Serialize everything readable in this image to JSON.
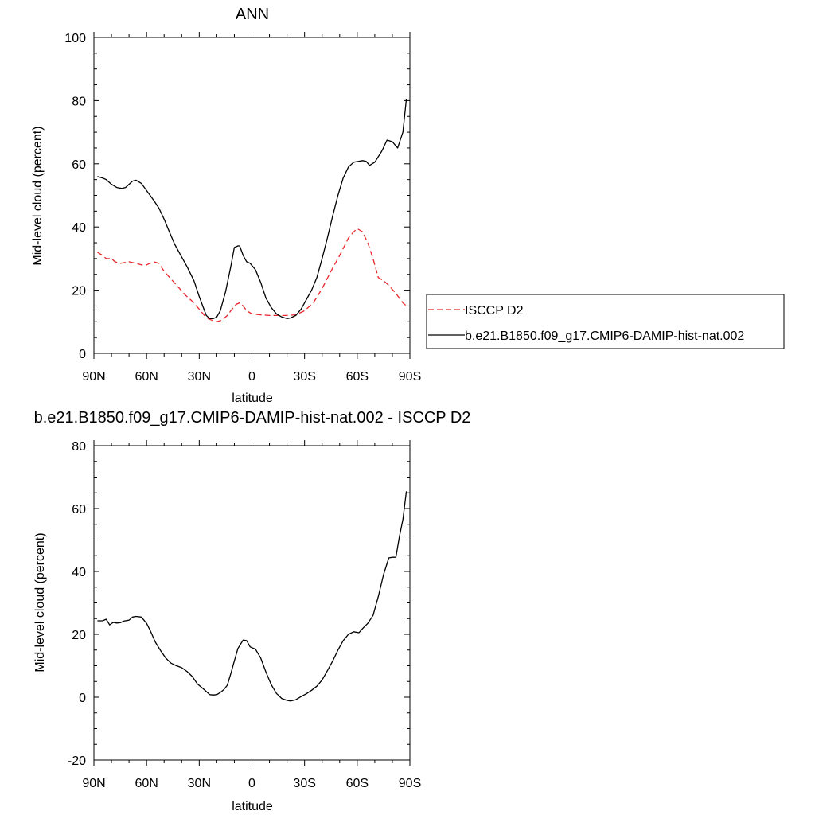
{
  "colors": {
    "model_line": "#000000",
    "obs_line": "#e8262b",
    "axis": "#000000"
  },
  "chart_data": [
    {
      "type": "line",
      "title": "ANN",
      "xlabel": "latitude",
      "ylabel": "Mid-level cloud (percent)",
      "xlim": [
        90,
        -90
      ],
      "ylim": [
        0,
        100
      ],
      "x_ticks": [
        {
          "value": 90,
          "label": "90N"
        },
        {
          "value": 60,
          "label": "60N"
        },
        {
          "value": 30,
          "label": "30N"
        },
        {
          "value": 0,
          "label": "0"
        },
        {
          "value": -30,
          "label": "30S"
        },
        {
          "value": -60,
          "label": "60S"
        },
        {
          "value": -90,
          "label": "90S"
        }
      ],
      "y_ticks": [
        0,
        20,
        40,
        60,
        80,
        100
      ],
      "y_minor_step": 5,
      "x_minor_step": 10,
      "legend_position": "right",
      "series": [
        {
          "name": "ISCCP D2",
          "style": "dashed",
          "color": "#e8262b",
          "x": [
            88,
            85,
            83,
            80,
            78,
            75,
            70,
            66,
            63,
            60,
            56,
            53,
            50,
            46,
            42,
            38,
            34,
            30,
            27,
            25,
            22,
            20,
            17,
            14,
            12,
            9,
            7,
            5,
            3,
            0,
            -5,
            -10,
            -15,
            -20,
            -25,
            -30,
            -35,
            -40,
            -45,
            -50,
            -55,
            -58,
            -60,
            -63,
            -66,
            -69,
            -72,
            -75,
            -78,
            -82,
            -86,
            -88
          ],
          "y": [
            32,
            31,
            30,
            30,
            29,
            28.5,
            29,
            28.5,
            28,
            28,
            29,
            28.5,
            26,
            23.5,
            21,
            18.5,
            16.5,
            14,
            12,
            11,
            10.3,
            10,
            10.5,
            12,
            13.5,
            15.5,
            16,
            15,
            13.5,
            12.5,
            12.2,
            12,
            12,
            12,
            12.2,
            13.5,
            16,
            20.5,
            26,
            31,
            36.5,
            38.5,
            39.5,
            38.5,
            35,
            30,
            24,
            23,
            21.5,
            19,
            16,
            15
          ]
        },
        {
          "name": "b.e21.B1850.f09_g17.CMIP6-DAMIP-hist-nat.002",
          "style": "solid",
          "color": "#000000",
          "x": [
            88,
            85,
            83,
            80,
            77,
            74,
            72,
            70,
            68,
            66,
            63,
            60,
            56,
            53,
            50,
            47,
            44,
            40,
            37,
            33,
            30,
            28,
            26,
            24,
            22,
            20,
            18,
            15,
            12,
            10,
            8,
            7,
            5,
            3,
            1,
            -2,
            -5,
            -8,
            -11,
            -14,
            -17,
            -20,
            -22,
            -25,
            -28,
            -31,
            -34,
            -37,
            -40,
            -43,
            -46,
            -49,
            -52,
            -55,
            -58,
            -61,
            -63,
            -65,
            -67,
            -70,
            -74,
            -77,
            -80,
            -83,
            -86,
            -88
          ],
          "y": [
            56,
            55.5,
            55,
            53.5,
            52.5,
            52.2,
            52.5,
            53.5,
            54.5,
            54.8,
            53.8,
            51.5,
            48.5,
            46,
            42.5,
            38.5,
            34.5,
            30.5,
            27.5,
            23,
            18,
            15,
            12,
            11,
            11,
            11.5,
            13.5,
            19.5,
            27.5,
            33.5,
            34,
            34,
            31,
            29,
            28.5,
            26.5,
            22.5,
            17.5,
            14.5,
            12.5,
            11.5,
            11,
            11.2,
            12,
            14,
            17,
            20,
            24,
            30,
            36.5,
            43.5,
            50,
            55.5,
            59,
            60.5,
            60.8,
            61,
            60.8,
            59.5,
            60.5,
            64,
            67.5,
            67,
            65,
            70,
            80.5
          ]
        }
      ]
    },
    {
      "type": "line",
      "title": "b.e21.B1850.f09_g17.CMIP6-DAMIP-hist-nat.002 - ISCCP D2",
      "xlabel": "latitude",
      "ylabel": "Mid-level cloud (percent)",
      "xlim": [
        90,
        -90
      ],
      "ylim": [
        -20,
        80
      ],
      "x_ticks": [
        {
          "value": 90,
          "label": "90N"
        },
        {
          "value": 60,
          "label": "60N"
        },
        {
          "value": 30,
          "label": "30N"
        },
        {
          "value": 0,
          "label": "0"
        },
        {
          "value": -30,
          "label": "30S"
        },
        {
          "value": -60,
          "label": "60S"
        },
        {
          "value": -90,
          "label": "90S"
        }
      ],
      "y_ticks": [
        -20,
        0,
        20,
        40,
        60,
        80
      ],
      "y_minor_step": 5,
      "x_minor_step": 10,
      "series": [
        {
          "style": "solid",
          "color": "#000000",
          "x": [
            88,
            85,
            83,
            81,
            79,
            77,
            75,
            73,
            70,
            68,
            66,
            63,
            60,
            58,
            55,
            52,
            49,
            46,
            43,
            40,
            37,
            34,
            31,
            28,
            26,
            24,
            22,
            20,
            18,
            16,
            14,
            12,
            10,
            8,
            5,
            3,
            1,
            -2,
            -5,
            -8,
            -11,
            -14,
            -17,
            -20,
            -22,
            -25,
            -28,
            -31,
            -34,
            -37,
            -40,
            -43,
            -46,
            -49,
            -52,
            -55,
            -58,
            -61,
            -63,
            -66,
            -69,
            -72,
            -75,
            -78,
            -80,
            -82,
            -84,
            -86,
            -88
          ],
          "y": [
            24.3,
            24.3,
            24.8,
            23,
            23.8,
            23.6,
            23.7,
            24.2,
            24.5,
            25.5,
            25.7,
            25.5,
            23.5,
            21.3,
            17.5,
            14.8,
            12.4,
            10.8,
            10,
            9.4,
            8.2,
            6.6,
            4.2,
            2.8,
            1.8,
            0.8,
            0.7,
            0.8,
            1.5,
            2.4,
            3.8,
            7.5,
            11.5,
            15.5,
            18.2,
            18,
            16,
            15.3,
            12.5,
            8,
            4,
            1.2,
            -0.4,
            -1,
            -1.2,
            -0.8,
            0.2,
            1.1,
            2.2,
            3.5,
            5.5,
            8.4,
            11.5,
            15,
            18,
            20,
            20.8,
            20.5,
            21.8,
            23.5,
            26,
            32,
            39,
            44.3,
            44.5,
            44.5,
            51,
            56.5,
            65.5
          ]
        }
      ]
    }
  ]
}
